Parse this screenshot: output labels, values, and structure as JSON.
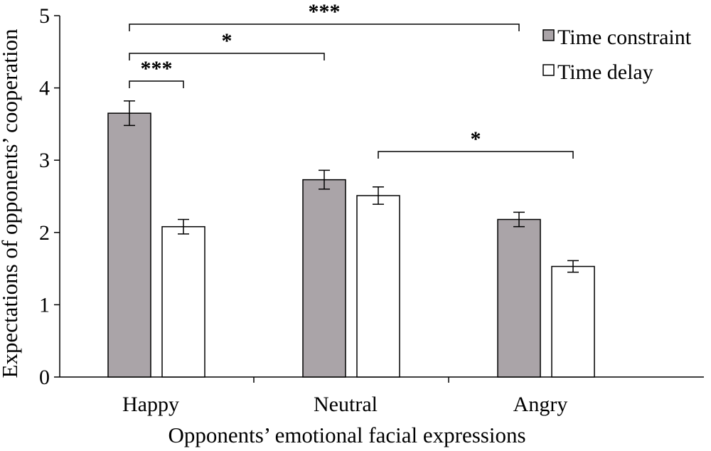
{
  "chart_data": {
    "type": "bar",
    "xlabel": "Opponents’ emotional facial expressions",
    "ylabel": "Expectations of opponents’ cooperation",
    "ylim": [
      0,
      5
    ],
    "yticks": [
      "0",
      "1",
      "2",
      "3",
      "4",
      "5"
    ],
    "categories": [
      "Happy",
      "Neutral",
      "Angry"
    ],
    "series": [
      {
        "name": "Time constraint",
        "color": "#aaa4a8",
        "values": [
          3.65,
          2.73,
          2.18
        ],
        "errors": [
          0.17,
          0.13,
          0.1
        ]
      },
      {
        "name": "Time delay",
        "color": "#ffffff",
        "values": [
          2.08,
          2.51,
          1.53
        ],
        "errors": [
          0.1,
          0.12,
          0.08
        ]
      }
    ],
    "legend": {
      "position": "top-right"
    },
    "significance": [
      {
        "label": "***",
        "from": {
          "category": 0,
          "series": 0
        },
        "to": {
          "category": 2,
          "series": 0
        }
      },
      {
        "label": "*",
        "from": {
          "category": 0,
          "series": 0
        },
        "to": {
          "category": 1,
          "series": 0
        }
      },
      {
        "label": "***",
        "from": {
          "category": 0,
          "series": 0
        },
        "to": {
          "category": 0,
          "series": 1
        }
      },
      {
        "label": "*",
        "from": {
          "category": 1,
          "series": 1
        },
        "to": {
          "category": 2,
          "series": 1
        }
      }
    ]
  }
}
